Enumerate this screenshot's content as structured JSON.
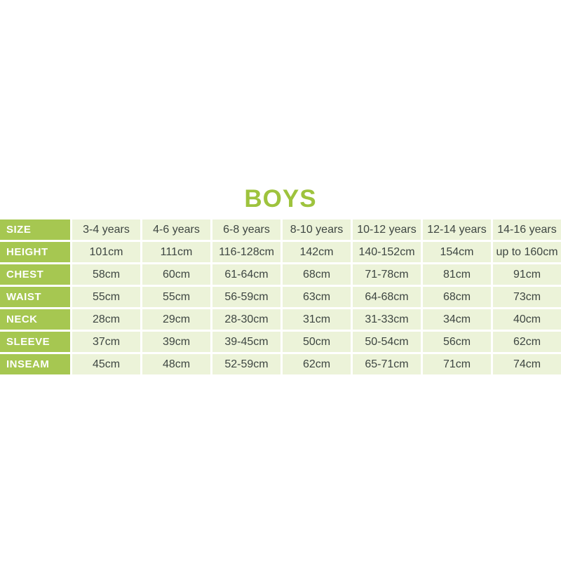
{
  "page": {
    "title": "BOYS"
  },
  "colors": {
    "title_green": "#9ec33d",
    "row_header_bg": "#a6c751",
    "row_header_text": "#ffffff",
    "cell_bg": "#ecf3d9",
    "cell_text": "#3e4642",
    "background": "#ffffff"
  },
  "chart_data": {
    "type": "table",
    "title": "BOYS",
    "legend_position": "none",
    "grid": "white 3px gutters between cells",
    "rows": [
      {
        "label": "SIZE",
        "cells": [
          "3-4 years",
          "4-6 years",
          "6-8 years",
          "8-10 years",
          "10-12 years",
          "12-14 years",
          "14-16 years"
        ]
      },
      {
        "label": "HEIGHT",
        "cells": [
          "101cm",
          "111cm",
          "116-128cm",
          "142cm",
          "140-152cm",
          "154cm",
          "up to 160cm"
        ]
      },
      {
        "label": "CHEST",
        "cells": [
          "58cm",
          "60cm",
          "61-64cm",
          "68cm",
          "71-78cm",
          "81cm",
          "91cm"
        ]
      },
      {
        "label": "WAIST",
        "cells": [
          "55cm",
          "55cm",
          "56-59cm",
          "63cm",
          "64-68cm",
          "68cm",
          "73cm"
        ]
      },
      {
        "label": "NECK",
        "cells": [
          "28cm",
          "29cm",
          "28-30cm",
          "31cm",
          "31-33cm",
          "34cm",
          "40cm"
        ]
      },
      {
        "label": "SLEEVE",
        "cells": [
          "37cm",
          "39cm",
          "39-45cm",
          "50cm",
          "50-54cm",
          "56cm",
          "62cm"
        ]
      },
      {
        "label": "INSEAM",
        "cells": [
          "45cm",
          "48cm",
          "52-59cm",
          "62cm",
          "65-71cm",
          "71cm",
          "74cm"
        ]
      }
    ]
  }
}
